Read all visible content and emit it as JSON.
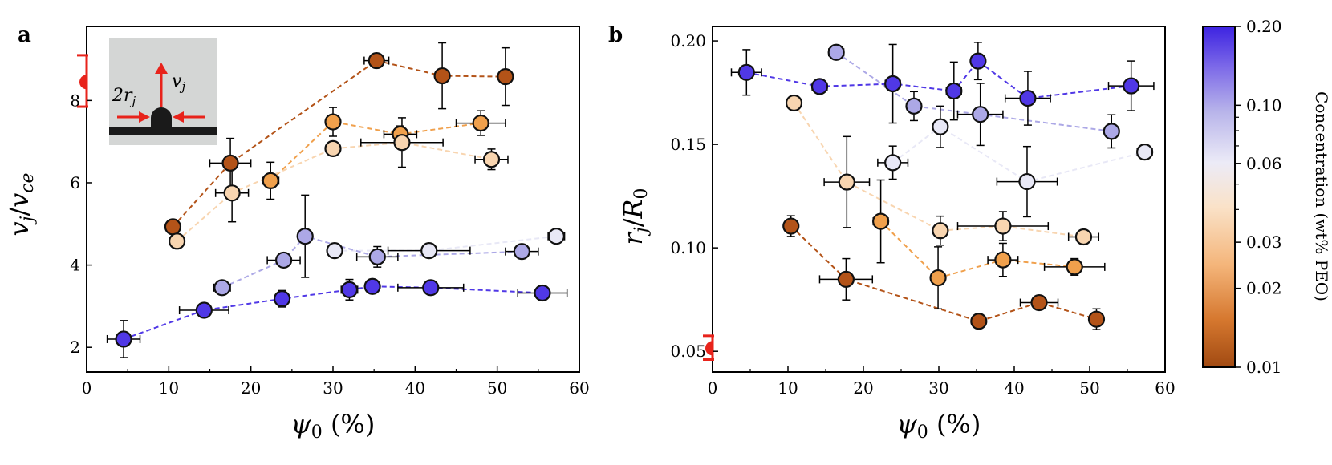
{
  "chart_data": [
    {
      "type": "scatter",
      "panel": "a",
      "title": "",
      "xlabel": "ψ₀ (%)",
      "ylabel": "vj/vce",
      "xlim": [
        0,
        60
      ],
      "ylim": [
        1.4,
        9.8
      ],
      "xticks": [
        "0",
        "10",
        "20",
        "30",
        "40",
        "50",
        "60"
      ],
      "yticks": [
        "2",
        "4",
        "6",
        "8"
      ],
      "connected": true,
      "series": [
        {
          "name": "0.01 wt% PEO",
          "concentration": 0.01,
          "color": "#B35318",
          "x": [
            10.5,
            17.5,
            35.3,
            43.3,
            51.0
          ],
          "y": [
            4.93,
            6.48,
            8.97,
            8.6,
            8.58
          ],
          "xerr": [
            0,
            2.5,
            1.5,
            0,
            0
          ],
          "yerr": [
            0,
            0.6,
            0.15,
            0.8,
            0.7
          ]
        },
        {
          "name": "0.02 wt% PEO",
          "concentration": 0.02,
          "color": "#F0A04C",
          "x": [
            22.4,
            30.0,
            38.2,
            48.0
          ],
          "y": [
            6.05,
            7.48,
            7.18,
            7.45
          ],
          "xerr": [
            1,
            0,
            2,
            3
          ],
          "yerr": [
            0.45,
            0.35,
            0.2,
            0.3
          ]
        },
        {
          "name": "0.03 wt% PEO",
          "concentration": 0.03,
          "color": "#F8D5B0",
          "x": [
            11.0,
            17.7,
            30.0,
            38.4,
            49.3
          ],
          "y": [
            4.58,
            5.75,
            6.83,
            6.98,
            6.57
          ],
          "xerr": [
            0,
            2,
            0,
            5,
            2
          ],
          "yerr": [
            0,
            0.7,
            0.15,
            0.6,
            0.25
          ]
        },
        {
          "name": "0.06 wt% PEO",
          "concentration": 0.06,
          "color": "#E8E8F6",
          "x": [
            30.2,
            41.7,
            57.2
          ],
          "y": [
            4.35,
            4.35,
            4.7
          ],
          "xerr": [
            0,
            5,
            1
          ],
          "yerr": [
            0.15,
            0.15,
            0.1
          ]
        },
        {
          "name": "0.10 wt% PEO",
          "concentration": 0.1,
          "color": "#ACA8E6",
          "x": [
            16.5,
            24.0,
            26.6,
            35.4,
            53.0
          ],
          "y": [
            3.45,
            4.12,
            4.7,
            4.2,
            4.33
          ],
          "xerr": [
            1,
            2,
            0,
            2.5,
            2
          ],
          "yerr": [
            0,
            0,
            1.0,
            0.25,
            0.1
          ]
        },
        {
          "name": "0.20 wt% PEO",
          "concentration": 0.2,
          "color": "#5038E6",
          "x": [
            4.5,
            14.3,
            23.8,
            32.0,
            34.8,
            41.9,
            55.5
          ],
          "y": [
            2.2,
            2.9,
            3.18,
            3.4,
            3.48,
            3.45,
            3.32
          ],
          "xerr": [
            2,
            3,
            0.5,
            1,
            0,
            4,
            3
          ],
          "yerr": [
            0.45,
            0,
            0.2,
            0.25,
            0,
            0,
            0
          ]
        }
      ],
      "reference_point": {
        "x": 0,
        "y": 8.45,
        "ylow": 7.85,
        "yhigh": 9.1,
        "color": "#E8231B"
      },
      "inset": {
        "labels": [
          "2r",
          "v"
        ],
        "subscripts": [
          "j",
          "j"
        ]
      }
    },
    {
      "type": "scatter",
      "panel": "b",
      "title": "",
      "xlabel": "ψ₀ (%)",
      "ylabel": "rj/R0",
      "xlim": [
        0,
        60
      ],
      "ylim": [
        0.04,
        0.207
      ],
      "xticks": [
        "0",
        "10",
        "20",
        "30",
        "40",
        "50",
        "60"
      ],
      "yticks": [
        "0.05",
        "0.10",
        "0.15",
        "0.20"
      ],
      "connected": true,
      "series": [
        {
          "name": "0.01 wt% PEO",
          "concentration": 0.01,
          "color": "#B35318",
          "x": [
            10.4,
            17.7,
            35.3,
            43.3,
            50.9
          ],
          "y": [
            0.1105,
            0.0848,
            0.0645,
            0.0735,
            0.0655
          ],
          "xerr": [
            0,
            3.5,
            0,
            2.5,
            0
          ],
          "yerr": [
            0.005,
            0.01,
            0,
            0,
            0.005
          ]
        },
        {
          "name": "0.02 wt% PEO",
          "concentration": 0.02,
          "color": "#F0A04C",
          "x": [
            22.3,
            29.9,
            38.5,
            48.0
          ],
          "y": [
            0.1128,
            0.0855,
            0.0942,
            0.0908
          ],
          "xerr": [
            1,
            0,
            2,
            4
          ],
          "yerr": [
            0.02,
            0.015,
            0.008,
            0.004
          ]
        },
        {
          "name": "0.03 wt% PEO",
          "concentration": 0.03,
          "color": "#F8D5B0",
          "x": [
            10.8,
            17.8,
            30.2,
            38.5,
            49.2
          ],
          "y": [
            0.17,
            0.1318,
            0.1083,
            0.1105,
            0.1053
          ],
          "xerr": [
            0,
            3,
            0,
            6,
            2
          ],
          "yerr": [
            0,
            0.022,
            0.007,
            0.007,
            0
          ]
        },
        {
          "name": "0.06 wt% PEO",
          "concentration": 0.06,
          "color": "#E8E8F6",
          "x": [
            23.9,
            30.2,
            41.7,
            57.3
          ],
          "y": [
            0.1412,
            0.1585,
            0.132,
            0.1463
          ],
          "xerr": [
            2,
            0,
            4,
            1
          ],
          "yerr": [
            0.008,
            0.01,
            0.017,
            0.003
          ]
        },
        {
          "name": "0.10 wt% PEO",
          "concentration": 0.1,
          "color": "#ACA8E6",
          "x": [
            16.4,
            26.7,
            35.5,
            52.9
          ],
          "y": [
            0.1945,
            0.1685,
            0.1645,
            0.1563
          ],
          "xerr": [
            1,
            0,
            3,
            0
          ],
          "yerr": [
            0,
            0.007,
            0.015,
            0.008
          ]
        },
        {
          "name": "0.20 wt% PEO",
          "concentration": 0.2,
          "color": "#5038E6",
          "x": [
            4.5,
            14.2,
            23.9,
            32.0,
            35.2,
            41.8,
            55.5
          ],
          "y": [
            0.1848,
            0.178,
            0.1793,
            0.1758,
            0.1903,
            0.1723,
            0.1783
          ],
          "xerr": [
            2,
            1,
            1,
            1,
            0,
            3,
            3
          ],
          "yerr": [
            0.011,
            0.003,
            0.019,
            0.014,
            0.009,
            0.013,
            0.012
          ]
        }
      ],
      "reference_point": {
        "x": 0,
        "y": 0.0515,
        "ylow": 0.046,
        "yhigh": 0.0575,
        "color": "#E8231B"
      }
    }
  ],
  "colorbar": {
    "label": "Concentration (wt% PEO)",
    "scale": "log",
    "range": [
      0.01,
      0.2
    ],
    "ticks": [
      "0.20",
      "0.10",
      "0.06",
      "0.03",
      "0.02",
      "0.01"
    ],
    "tick_values": [
      0.2,
      0.1,
      0.06,
      0.03,
      0.02,
      0.01
    ],
    "colors": [
      "#A14A12",
      "#D6782F",
      "#F4B57A",
      "#FAE2C8",
      "#ECEBF7",
      "#B8B4EA",
      "#7D6AE8",
      "#3D23E1"
    ]
  },
  "panels": {
    "a": "a",
    "b": "b"
  }
}
